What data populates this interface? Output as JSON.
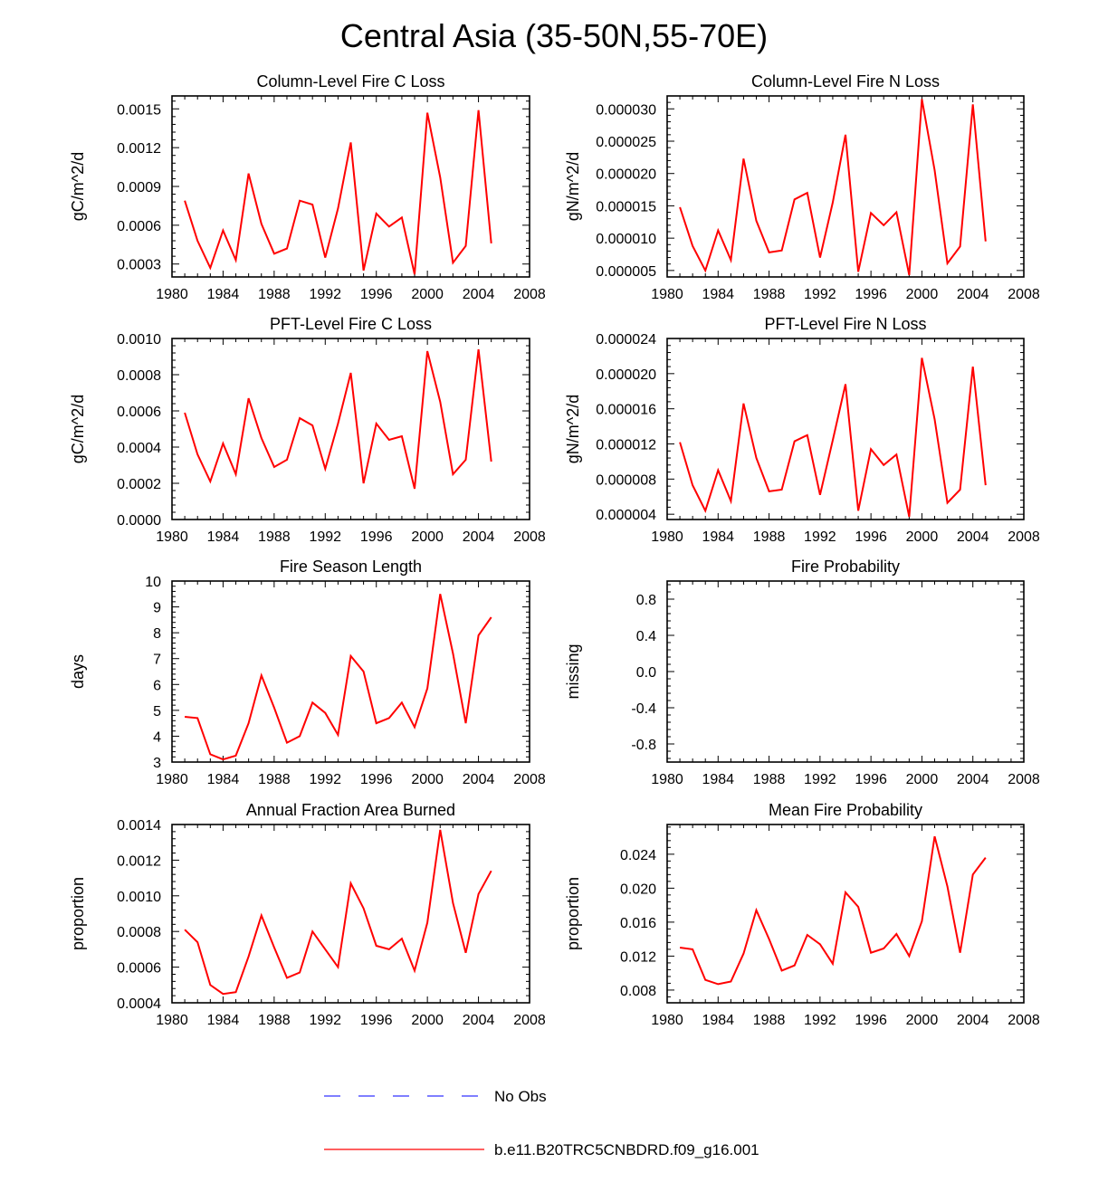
{
  "figure_title": "Central Asia (35-50N,55-70E)",
  "legend": {
    "items": [
      {
        "label": "No Obs",
        "color": "#3333ff",
        "style": "dashed"
      },
      {
        "label": "b.e11.B20TRC5CNBDRD.f09_g16.001",
        "color": "#ff0000",
        "style": "solid"
      }
    ]
  },
  "colors": {
    "series": "#ff0000",
    "axis": "#000000",
    "obs": "#3333ff"
  },
  "chart_data": [
    {
      "type": "line",
      "title": "Column-Level Fire C Loss",
      "ylabel": "gC/m^2/d",
      "xlim": [
        1980,
        2008
      ],
      "xticks": [
        1980,
        1984,
        1988,
        1992,
        1996,
        2000,
        2004,
        2008
      ],
      "ylim": [
        0.0002,
        0.0016
      ],
      "yticks": [
        "0.0003",
        "0.0006",
        "0.0009",
        "0.0012",
        "0.0015"
      ],
      "x": [
        1981,
        1982,
        1983,
        1984,
        1985,
        1986,
        1987,
        1988,
        1989,
        1990,
        1991,
        1992,
        1993,
        1994,
        1995,
        1996,
        1997,
        1998,
        1999,
        2000,
        2001,
        2002,
        2003,
        2004,
        2005
      ],
      "series": [
        {
          "name": "b.e11.B20TRC5CNBDRD.f09_g16.001",
          "values": [
            0.00079,
            0.00048,
            0.00027,
            0.00056,
            0.00033,
            0.001,
            0.00061,
            0.00038,
            0.00042,
            0.00079,
            0.00076,
            0.00035,
            0.00073,
            0.00124,
            0.00025,
            0.00069,
            0.00059,
            0.00066,
            0.00022,
            0.00147,
            0.00097,
            0.00031,
            0.00044,
            0.00149,
            0.00046
          ]
        }
      ]
    },
    {
      "type": "line",
      "title": "Column-Level Fire N Loss",
      "ylabel": "gN/m^2/d",
      "xlim": [
        1980,
        2008
      ],
      "xticks": [
        1980,
        1984,
        1988,
        1992,
        1996,
        2000,
        2004,
        2008
      ],
      "ylim": [
        4e-06,
        3.2e-05
      ],
      "yticks": [
        "0.000005",
        "0.000010",
        "0.000015",
        "0.000020",
        "0.000025",
        "0.000030"
      ],
      "x": [
        1981,
        1982,
        1983,
        1984,
        1985,
        1986,
        1987,
        1988,
        1989,
        1990,
        1991,
        1992,
        1993,
        1994,
        1995,
        1996,
        1997,
        1998,
        1999,
        2000,
        2001,
        2002,
        2003,
        2004,
        2005
      ],
      "series": [
        {
          "name": "b.e11.B20TRC5CNBDRD.f09_g16.001",
          "values": [
            1.48e-05,
            8.8e-06,
            5e-06,
            1.12e-05,
            6.6e-06,
            2.23e-05,
            1.27e-05,
            7.8e-06,
            8.1e-06,
            1.6e-05,
            1.7e-05,
            7e-06,
            1.55e-05,
            2.6e-05,
            4.8e-06,
            1.39e-05,
            1.2e-05,
            1.4e-05,
            4.3e-06,
            3.15e-05,
            2.05e-05,
            6.1e-06,
            8.7e-06,
            3.07e-05,
            9.5e-06
          ]
        }
      ]
    },
    {
      "type": "line",
      "title": "PFT-Level Fire C Loss",
      "ylabel": "gC/m^2/d",
      "xlim": [
        1980,
        2008
      ],
      "xticks": [
        1980,
        1984,
        1988,
        1992,
        1996,
        2000,
        2004,
        2008
      ],
      "ylim": [
        0,
        0.001
      ],
      "yticks": [
        "0.0000",
        "0.0002",
        "0.0004",
        "0.0006",
        "0.0008",
        "0.0010"
      ],
      "x": [
        1981,
        1982,
        1983,
        1984,
        1985,
        1986,
        1987,
        1988,
        1989,
        1990,
        1991,
        1992,
        1993,
        1994,
        1995,
        1996,
        1997,
        1998,
        1999,
        2000,
        2001,
        2002,
        2003,
        2004,
        2005
      ],
      "series": [
        {
          "name": "b.e11.B20TRC5CNBDRD.f09_g16.001",
          "values": [
            0.00059,
            0.00036,
            0.00021,
            0.00042,
            0.00025,
            0.00067,
            0.00045,
            0.00029,
            0.00033,
            0.00056,
            0.00052,
            0.00028,
            0.00053,
            0.00081,
            0.0002,
            0.00053,
            0.00044,
            0.00046,
            0.00017,
            0.00093,
            0.00065,
            0.00025,
            0.00033,
            0.00094,
            0.00032
          ]
        }
      ]
    },
    {
      "type": "line",
      "title": "PFT-Level Fire N Loss",
      "ylabel": "gN/m^2/d",
      "xlim": [
        1980,
        2008
      ],
      "xticks": [
        1980,
        1984,
        1988,
        1992,
        1996,
        2000,
        2004,
        2008
      ],
      "ylim": [
        3.4e-06,
        2.4e-05
      ],
      "yticks": [
        "0.000004",
        "0.000008",
        "0.000012",
        "0.000016",
        "0.000020",
        "0.000024"
      ],
      "x": [
        1981,
        1982,
        1983,
        1984,
        1985,
        1986,
        1987,
        1988,
        1989,
        1990,
        1991,
        1992,
        1993,
        1994,
        1995,
        1996,
        1997,
        1998,
        1999,
        2000,
        2001,
        2002,
        2003,
        2004,
        2005
      ],
      "series": [
        {
          "name": "b.e11.B20TRC5CNBDRD.f09_g16.001",
          "values": [
            1.22e-05,
            7.3e-06,
            4.4e-06,
            9e-06,
            5.5e-06,
            1.66e-05,
            1.04e-05,
            6.6e-06,
            6.8e-06,
            1.23e-05,
            1.3e-05,
            6.2e-06,
            1.24e-05,
            1.88e-05,
            4.4e-06,
            1.14e-05,
            9.6e-06,
            1.08e-05,
            3.7e-06,
            2.18e-05,
            1.48e-05,
            5.3e-06,
            6.8e-06,
            2.08e-05,
            7.3e-06
          ]
        }
      ]
    },
    {
      "type": "line",
      "title": "Fire Season Length",
      "ylabel": "days",
      "xlim": [
        1980,
        2008
      ],
      "xticks": [
        1980,
        1984,
        1988,
        1992,
        1996,
        2000,
        2004,
        2008
      ],
      "ylim": [
        3,
        10
      ],
      "yticks": [
        "3",
        "4",
        "5",
        "6",
        "7",
        "8",
        "9",
        "10"
      ],
      "x": [
        1981,
        1982,
        1983,
        1984,
        1985,
        1986,
        1987,
        1988,
        1989,
        1990,
        1991,
        1992,
        1993,
        1994,
        1995,
        1996,
        1997,
        1998,
        1999,
        2000,
        2001,
        2002,
        2003,
        2004,
        2005
      ],
      "series": [
        {
          "name": "b.e11.B20TRC5CNBDRD.f09_g16.001",
          "values": [
            4.75,
            4.7,
            3.3,
            3.1,
            3.25,
            4.5,
            6.35,
            5.1,
            3.75,
            4.0,
            5.3,
            4.9,
            4.05,
            7.1,
            6.5,
            4.5,
            4.7,
            5.3,
            4.35,
            5.85,
            9.5,
            7.2,
            4.5,
            7.9,
            8.6
          ]
        }
      ]
    },
    {
      "type": "line",
      "title": "Fire Probability",
      "ylabel": "missing",
      "xlim": [
        1980,
        2008
      ],
      "xticks": [
        1980,
        1984,
        1988,
        1992,
        1996,
        2000,
        2004,
        2008
      ],
      "ylim": [
        -1,
        1
      ],
      "yticks": [
        "-0.8",
        "-0.4",
        "0.0",
        "0.4",
        "0.8"
      ],
      "x": [],
      "series": []
    },
    {
      "type": "line",
      "title": "Annual Fraction Area Burned",
      "ylabel": "proportion",
      "xlim": [
        1980,
        2008
      ],
      "xticks": [
        1980,
        1984,
        1988,
        1992,
        1996,
        2000,
        2004,
        2008
      ],
      "ylim": [
        0.0004,
        0.0014
      ],
      "yticks": [
        "0.0004",
        "0.0006",
        "0.0008",
        "0.0010",
        "0.0012",
        "0.0014"
      ],
      "x": [
        1981,
        1982,
        1983,
        1984,
        1985,
        1986,
        1987,
        1988,
        1989,
        1990,
        1991,
        1992,
        1993,
        1994,
        1995,
        1996,
        1997,
        1998,
        1999,
        2000,
        2001,
        2002,
        2003,
        2004,
        2005
      ],
      "series": [
        {
          "name": "b.e11.B20TRC5CNBDRD.f09_g16.001",
          "values": [
            0.00081,
            0.00074,
            0.0005,
            0.00045,
            0.00046,
            0.00066,
            0.00089,
            0.00071,
            0.00054,
            0.00057,
            0.0008,
            0.0007,
            0.0006,
            0.00107,
            0.00093,
            0.00072,
            0.0007,
            0.00076,
            0.00058,
            0.00085,
            0.00137,
            0.00096,
            0.00068,
            0.00101,
            0.00114
          ]
        }
      ]
    },
    {
      "type": "line",
      "title": "Mean Fire Probability",
      "ylabel": "proportion",
      "xlim": [
        1980,
        2008
      ],
      "xticks": [
        1980,
        1984,
        1988,
        1992,
        1996,
        2000,
        2004,
        2008
      ],
      "ylim": [
        0.0065,
        0.0275
      ],
      "yticks": [
        "0.008",
        "0.012",
        "0.016",
        "0.020",
        "0.024"
      ],
      "x": [
        1981,
        1982,
        1983,
        1984,
        1985,
        1986,
        1987,
        1988,
        1989,
        1990,
        1991,
        1992,
        1993,
        1994,
        1995,
        1996,
        1997,
        1998,
        1999,
        2000,
        2001,
        2002,
        2003,
        2004,
        2005
      ],
      "series": [
        {
          "name": "b.e11.B20TRC5CNBDRD.f09_g16.001",
          "values": [
            0.013,
            0.0128,
            0.0092,
            0.0087,
            0.009,
            0.0123,
            0.0174,
            0.014,
            0.0103,
            0.0109,
            0.0145,
            0.0134,
            0.0111,
            0.0195,
            0.0178,
            0.0124,
            0.0129,
            0.0146,
            0.012,
            0.0161,
            0.0261,
            0.0202,
            0.0124,
            0.0216,
            0.0236
          ]
        }
      ]
    }
  ]
}
